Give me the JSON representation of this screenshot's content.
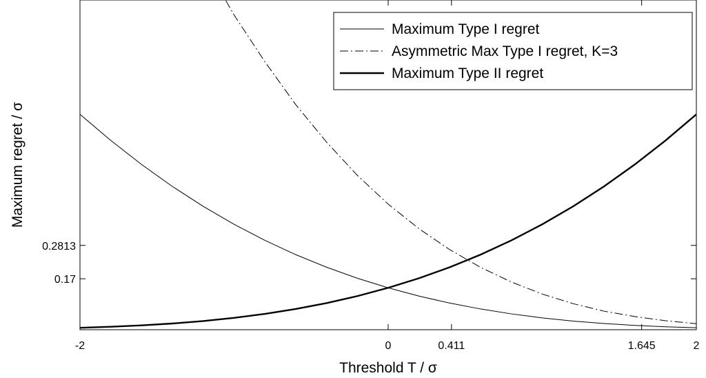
{
  "chart_data": {
    "type": "line",
    "xlabel": "Threshold T / σ",
    "ylabel": "Maximum regret / σ",
    "xlim": [
      -2,
      2
    ],
    "ylim": [
      0,
      1.1
    ],
    "x_ticks": [
      {
        "value": -2,
        "label": "-2"
      },
      {
        "value": 0,
        "label": "0"
      },
      {
        "value": 0.411,
        "label": "0.411"
      },
      {
        "value": 1.645,
        "label": "1.645"
      },
      {
        "value": 2,
        "label": "2"
      }
    ],
    "y_ticks": [
      {
        "value": 0.2813,
        "label": "0.2813"
      },
      {
        "value": 0.17,
        "label": "0.17"
      }
    ],
    "legend_position": "top-right",
    "series": [
      {
        "name": "Maximum Type I regret",
        "style": "thin-solid",
        "color": "#000000",
        "x": [
          -2.0,
          -1.8,
          -1.6,
          -1.4,
          -1.2,
          -1.0,
          -0.8,
          -0.6,
          -0.4,
          -0.2,
          0.0,
          0.2,
          0.4,
          0.6,
          0.8,
          1.0,
          1.2,
          1.4,
          1.6,
          1.8,
          2.0
        ],
        "y": [
          0.7186,
          0.6313,
          0.5511,
          0.4778,
          0.4114,
          0.3516,
          0.2981,
          0.2505,
          0.2085,
          0.1717,
          0.1398,
          0.1122,
          0.0888,
          0.0692,
          0.0528,
          0.0395,
          0.0289,
          0.0207,
          0.0145,
          0.0099,
          0.0065
        ]
      },
      {
        "name": "Asymmetric Max Type I regret, K=3",
        "style": "dash-dot",
        "color": "#000000",
        "x": [
          -1.2,
          -1.0,
          -0.8,
          -0.6,
          -0.4,
          -0.2,
          0.0,
          0.2,
          0.4,
          0.6,
          0.8,
          1.0,
          1.2,
          1.4,
          1.6,
          1.8,
          2.0
        ],
        "y": [
          1.23,
          1.05,
          0.894,
          0.751,
          0.626,
          0.515,
          0.419,
          0.337,
          0.267,
          0.208,
          0.159,
          0.119,
          0.087,
          0.062,
          0.044,
          0.03,
          0.02
        ]
      },
      {
        "name": "Maximum Type II regret",
        "style": "thick-solid",
        "color": "#000000",
        "x": [
          -2.0,
          -1.8,
          -1.6,
          -1.4,
          -1.2,
          -1.0,
          -0.8,
          -0.6,
          -0.4,
          -0.2,
          0.0,
          0.2,
          0.4,
          0.6,
          0.8,
          1.0,
          1.2,
          1.4,
          1.6,
          1.8,
          2.0
        ],
        "y": [
          0.0065,
          0.0099,
          0.0145,
          0.0207,
          0.0289,
          0.0395,
          0.0528,
          0.0692,
          0.0888,
          0.1122,
          0.1398,
          0.1717,
          0.2085,
          0.2505,
          0.2981,
          0.3516,
          0.4114,
          0.4778,
          0.5511,
          0.6313,
          0.7186
        ]
      }
    ]
  }
}
